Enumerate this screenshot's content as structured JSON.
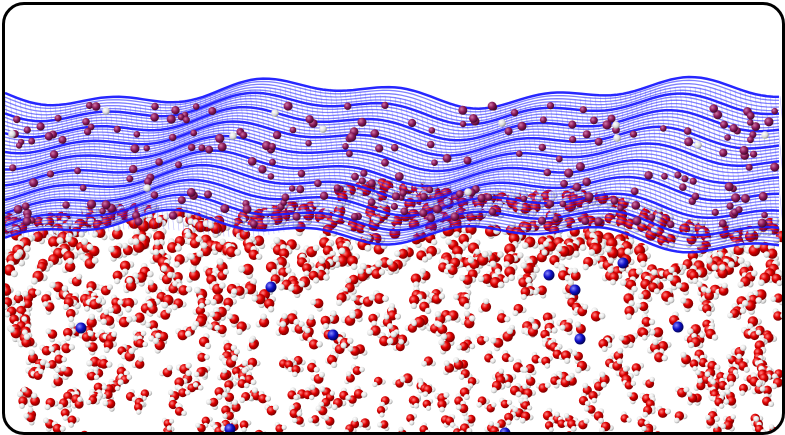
{
  "scene": {
    "kind": "molecular-simulation-snapshot",
    "background_color": "#ffffff",
    "frame_color": "#000000",
    "layers": [
      {
        "name": "membrane-mesh",
        "color": "#1a1aff",
        "shape": "wavy-wireframe-surface"
      },
      {
        "name": "embedded-molecules",
        "color": "#8b1a5c",
        "shape": "spheres"
      },
      {
        "name": "water-oxygen",
        "color": "#e00000",
        "shape": "spheres"
      },
      {
        "name": "water-hydrogen",
        "color": "#f2f2f2",
        "shape": "spheres"
      },
      {
        "name": "ions",
        "color": "#1010c8",
        "shape": "spheres"
      }
    ]
  }
}
